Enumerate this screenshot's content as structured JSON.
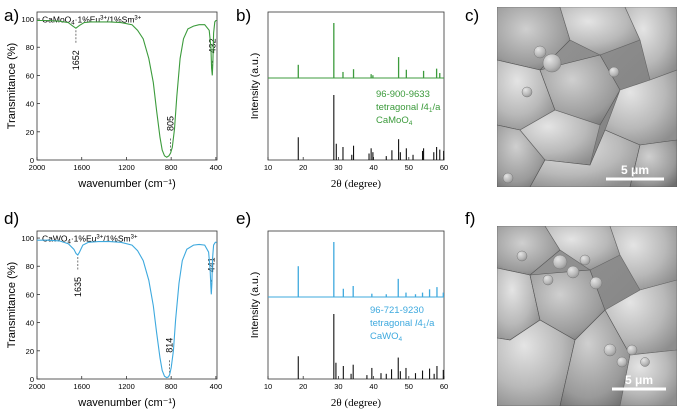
{
  "figure": {
    "panel_letters": [
      "a)",
      "b)",
      "c)",
      "d)",
      "e)",
      "f)"
    ]
  },
  "ftir_axes": {
    "xlabel": "wavenumber (cm⁻¹)",
    "ylabel": "Transmitance (%)",
    "xticks": [
      2000,
      1600,
      1200,
      800,
      400
    ],
    "yticks": [
      0,
      20,
      40,
      60,
      80,
      100
    ]
  },
  "xrd_axes": {
    "xlabel": "2θ (degree)",
    "ylabel": "Intensity (a.u.)",
    "xticks": [
      10,
      20,
      30,
      40,
      50,
      60
    ]
  },
  "panels": {
    "a": {
      "formula_main": "CaMoO",
      "formula_sub": "4",
      "dopants_1": "·1%Eu",
      "dopant_sup_1": "3+",
      "dopants_2": "/1%Sm",
      "dopant_sup_2": "3+",
      "peak_labels": [
        "1652",
        "805",
        "432"
      ]
    },
    "b": {
      "ref_code": "96-900-9633",
      "ref_phase_prefix": "tetragonal ",
      "ref_phase_italic": "I",
      "ref_phase_4": "4",
      "ref_phase_sub": "1",
      "ref_phase_suffix": "/a",
      "ref_formula_main": "CaMoO",
      "ref_formula_sub": "4"
    },
    "c": {
      "scale_label": "5 μm"
    },
    "d": {
      "formula_main": "CaWO",
      "formula_sub": "4",
      "dopants_1": "·1%Eu",
      "dopant_sup_1": "3+",
      "dopants_2": "/1%Sm",
      "dopant_sup_2": "3+",
      "peak_labels": [
        "1635",
        "814",
        "441"
      ]
    },
    "e": {
      "ref_code": "96-721-9230",
      "ref_phase_prefix": "tetragonal ",
      "ref_phase_italic": "I",
      "ref_phase_4": "4",
      "ref_phase_sub": "1",
      "ref_phase_suffix": "/a",
      "ref_formula_main": "CaWO",
      "ref_formula_sub": "4"
    },
    "f": {
      "scale_label": "5 μm"
    }
  },
  "colors": {
    "green": "#3c9b3c",
    "blue": "#3ea9de",
    "ref_bars": "#111111"
  },
  "chart_data": [
    {
      "type": "line",
      "panel": "a",
      "xlabel": "wavenumber (cm⁻¹)",
      "ylabel": "Transmitance (%)",
      "xlim": [
        2000,
        390
      ],
      "ylim": [
        0,
        105
      ],
      "series": [
        {
          "color": "#3c9b3c",
          "points": [
            [
              2000,
              99
            ],
            [
              1900,
              99
            ],
            [
              1800,
              98.5
            ],
            [
              1720,
              97.5
            ],
            [
              1680,
              95
            ],
            [
              1652,
              93.5
            ],
            [
              1620,
              95.5
            ],
            [
              1580,
              97.5
            ],
            [
              1520,
              98
            ],
            [
              1450,
              98
            ],
            [
              1350,
              98
            ],
            [
              1250,
              97.5
            ],
            [
              1150,
              96
            ],
            [
              1100,
              92
            ],
            [
              1050,
              86
            ],
            [
              1000,
              72
            ],
            [
              960,
              55
            ],
            [
              930,
              35
            ],
            [
              900,
              16
            ],
            [
              880,
              7
            ],
            [
              860,
              3
            ],
            [
              840,
              2
            ],
            [
              820,
              3
            ],
            [
              805,
              5
            ],
            [
              790,
              9
            ],
            [
              770,
              22
            ],
            [
              750,
              45
            ],
            [
              720,
              72
            ],
            [
              690,
              86
            ],
            [
              650,
              93
            ],
            [
              600,
              95
            ],
            [
              550,
              96
            ],
            [
              500,
              96
            ],
            [
              460,
              92
            ],
            [
              445,
              80
            ],
            [
              438,
              65
            ],
            [
              432,
              60
            ],
            [
              427,
              70
            ],
            [
              420,
              90
            ],
            [
              410,
              98
            ],
            [
              400,
              99
            ],
            [
              392,
              99
            ]
          ]
        }
      ],
      "peaks": [
        1652,
        805,
        432
      ]
    },
    {
      "type": "bar",
      "panel": "b",
      "xlabel": "2θ (degree)",
      "ylabel": "Intensity (a.u.)",
      "xlim": [
        10,
        60
      ],
      "series": [
        {
          "role": "measured",
          "color": "#3c9b3c",
          "x": [
            18.6,
            28.7,
            31.3,
            34.3,
            39.3,
            39.8,
            47.1,
            49.3,
            54.2,
            57.9,
            58.8
          ],
          "values": [
            24,
            100,
            11,
            16,
            7,
            5,
            38,
            15,
            13,
            17,
            9
          ]
        },
        {
          "role": "reference",
          "color": "#111111",
          "x": [
            18.6,
            28.7,
            29.4,
            31.3,
            33.8,
            34.3,
            38.7,
            39.3,
            39.8,
            43.6,
            45.2,
            47.1,
            47.6,
            49.3,
            51.2,
            53.9,
            54.2,
            57.1,
            57.9,
            58.8,
            59.9
          ],
          "values": [
            35,
            100,
            25,
            20,
            8,
            22,
            10,
            18,
            12,
            6,
            15,
            32,
            12,
            18,
            8,
            14,
            18,
            12,
            20,
            16,
            14
          ]
        }
      ]
    },
    {
      "type": "line",
      "panel": "d",
      "xlabel": "wavenumber (cm⁻¹)",
      "ylabel": "Transmitance (%)",
      "xlim": [
        2000,
        390
      ],
      "ylim": [
        0,
        105
      ],
      "series": [
        {
          "color": "#3ea9de",
          "points": [
            [
              2000,
              98.5
            ],
            [
              1900,
              98.5
            ],
            [
              1800,
              98
            ],
            [
              1720,
              96
            ],
            [
              1670,
              92
            ],
            [
              1650,
              89
            ],
            [
              1635,
              88
            ],
            [
              1620,
              90
            ],
            [
              1590,
              95
            ],
            [
              1540,
              97
            ],
            [
              1450,
              97.5
            ],
            [
              1350,
              97.5
            ],
            [
              1250,
              97
            ],
            [
              1150,
              95
            ],
            [
              1100,
              91
            ],
            [
              1050,
              84
            ],
            [
              1000,
              70
            ],
            [
              960,
              52
            ],
            [
              930,
              33
            ],
            [
              900,
              15
            ],
            [
              880,
              6
            ],
            [
              860,
              2
            ],
            [
              840,
              1
            ],
            [
              825,
              1.5
            ],
            [
              814,
              3
            ],
            [
              800,
              8
            ],
            [
              780,
              20
            ],
            [
              760,
              42
            ],
            [
              730,
              68
            ],
            [
              700,
              84
            ],
            [
              660,
              92
            ],
            [
              600,
              95
            ],
            [
              550,
              95.5
            ],
            [
              500,
              95
            ],
            [
              465,
              90
            ],
            [
              452,
              78
            ],
            [
              445,
              65
            ],
            [
              441,
              60
            ],
            [
              436,
              68
            ],
            [
              430,
              85
            ],
            [
              420,
              95
            ],
            [
              405,
              97
            ],
            [
              392,
              97
            ]
          ]
        }
      ],
      "peaks": [
        1635,
        814,
        441
      ]
    },
    {
      "type": "bar",
      "panel": "e",
      "xlabel": "2θ (degree)",
      "ylabel": "Intensity (a.u.)",
      "xlim": [
        10,
        60
      ],
      "series": [
        {
          "role": "measured",
          "color": "#3ea9de",
          "x": [
            18.6,
            28.7,
            31.4,
            34.2,
            39.5,
            43.6,
            47.0,
            49.2,
            51.9,
            53.9,
            55.9,
            58.0,
            59.8
          ],
          "values": [
            56,
            100,
            15,
            20,
            6,
            5,
            33,
            8,
            5,
            8,
            14,
            18,
            8
          ]
        },
        {
          "role": "reference",
          "color": "#111111",
          "x": [
            18.6,
            28.7,
            29.3,
            31.4,
            33.6,
            34.2,
            38.1,
            39.5,
            42.1,
            43.6,
            45.1,
            47.0,
            47.6,
            49.2,
            51.9,
            53.9,
            55.9,
            57.2,
            58.0,
            59.8
          ],
          "values": [
            35,
            100,
            25,
            20,
            8,
            22,
            6,
            17,
            9,
            8,
            15,
            33,
            12,
            17,
            9,
            13,
            16,
            8,
            20,
            14
          ]
        }
      ]
    }
  ]
}
